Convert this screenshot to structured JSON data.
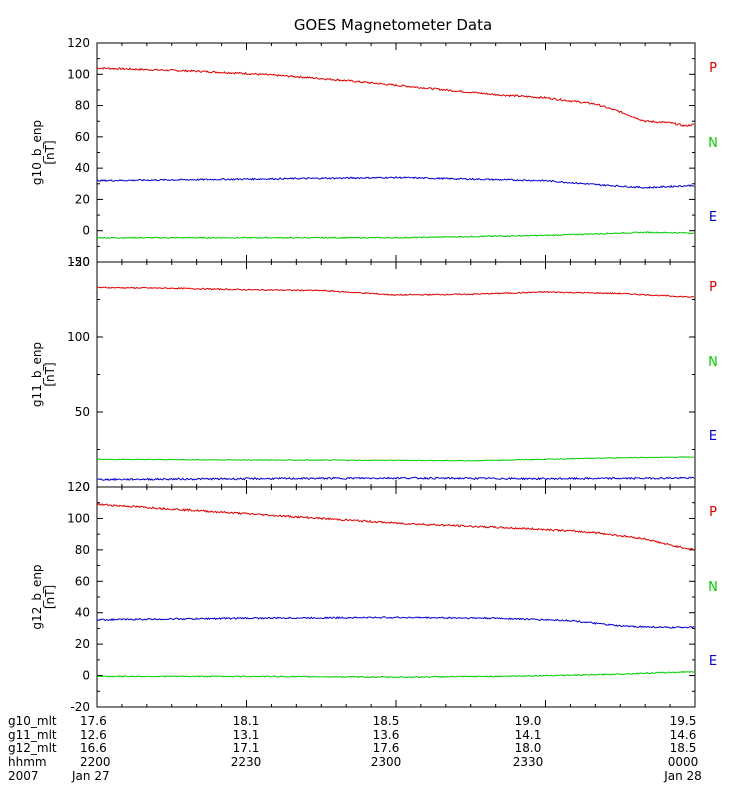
{
  "chart_data": {
    "type": "line",
    "title": "GOES Magnetometer Data",
    "x": {
      "start": "2007-01-27 22:00",
      "end": "2007-01-28 00:00",
      "tick_times": [
        "2200",
        "2230",
        "2300",
        "2330",
        "0000"
      ]
    },
    "colors": {
      "P": "#dd0000",
      "N": "#00cc00",
      "E": "#0000cc"
    },
    "panels": [
      {
        "ylabel": "g10_b_enp",
        "yunits": "[nT]",
        "ylim": [
          -20,
          120
        ],
        "yticks": [
          -20,
          0,
          20,
          40,
          60,
          80,
          100,
          120
        ],
        "series": [
          {
            "name": "P",
            "color": "#dd0000",
            "noise": 0.6,
            "points": [
              [
                "22:00",
                104
              ],
              [
                "22:10",
                103
              ],
              [
                "22:20",
                102
              ],
              [
                "22:30",
                100.5
              ],
              [
                "22:40",
                98.5
              ],
              [
                "22:50",
                96
              ],
              [
                "23:00",
                93
              ],
              [
                "23:10",
                90
              ],
              [
                "23:20",
                87
              ],
              [
                "23:30",
                85
              ],
              [
                "23:40",
                81
              ],
              [
                "23:45",
                76
              ],
              [
                "23:50",
                70
              ],
              [
                "23:55",
                69
              ],
              [
                "23:58",
                67
              ],
              [
                "24:00",
                68
              ]
            ]
          },
          {
            "name": "N",
            "color": "#00cc00",
            "noise": 0.35,
            "points": [
              [
                "22:00",
                -4.5
              ],
              [
                "22:30",
                -4.5
              ],
              [
                "23:00",
                -4.5
              ],
              [
                "23:20",
                -3.5
              ],
              [
                "23:30",
                -3
              ],
              [
                "23:40",
                -2
              ],
              [
                "23:50",
                -1
              ],
              [
                "24:00",
                -1.5
              ]
            ]
          },
          {
            "name": "E",
            "color": "#0000cc",
            "noise": 0.5,
            "points": [
              [
                "22:00",
                32
              ],
              [
                "22:30",
                33
              ],
              [
                "23:00",
                34
              ],
              [
                "23:15",
                33
              ],
              [
                "23:30",
                32
              ],
              [
                "23:40",
                29.5
              ],
              [
                "23:50",
                27.5
              ],
              [
                "24:00",
                29
              ]
            ]
          }
        ]
      },
      {
        "ylabel": "g11_b_enp",
        "yunits": "[nT]",
        "ylim": [
          0,
          150
        ],
        "yticks": [
          0,
          50,
          100,
          150
        ],
        "series": [
          {
            "name": "P",
            "color": "#dd0000",
            "noise": 0.4,
            "points": [
              [
                "22:00",
                133
              ],
              [
                "22:15",
                132.5
              ],
              [
                "22:30",
                131.5
              ],
              [
                "22:45",
                131
              ],
              [
                "23:00",
                128
              ],
              [
                "23:15",
                128.5
              ],
              [
                "23:30",
                130
              ],
              [
                "23:45",
                129
              ],
              [
                "24:00",
                126.5
              ]
            ]
          },
          {
            "name": "N",
            "color": "#00cc00",
            "noise": 0.25,
            "points": [
              [
                "22:00",
                18.5
              ],
              [
                "22:30",
                18
              ],
              [
                "23:00",
                17.8
              ],
              [
                "23:15",
                17.5
              ],
              [
                "23:30",
                18.5
              ],
              [
                "23:45",
                19.5
              ],
              [
                "24:00",
                20
              ]
            ]
          },
          {
            "name": "E",
            "color": "#0000cc",
            "noise": 0.6,
            "points": [
              [
                "22:00",
                5
              ],
              [
                "22:30",
                5.5
              ],
              [
                "23:00",
                6
              ],
              [
                "23:30",
                5.5
              ],
              [
                "24:00",
                6
              ]
            ]
          }
        ]
      },
      {
        "ylabel": "g12_b_enp",
        "yunits": "[nT]",
        "ylim": [
          -20,
          120
        ],
        "yticks": [
          -20,
          0,
          20,
          40,
          60,
          80,
          100,
          120
        ],
        "series": [
          {
            "name": "P",
            "color": "#dd0000",
            "noise": 0.6,
            "points": [
              [
                "22:00",
                109
              ],
              [
                "22:15",
                106
              ],
              [
                "22:30",
                103
              ],
              [
                "22:45",
                100
              ],
              [
                "23:00",
                97
              ],
              [
                "23:15",
                95
              ],
              [
                "23:30",
                93
              ],
              [
                "23:40",
                91
              ],
              [
                "23:50",
                87
              ],
              [
                "23:55",
                83
              ],
              [
                "24:00",
                80
              ]
            ]
          },
          {
            "name": "N",
            "color": "#00cc00",
            "noise": 0.35,
            "points": [
              [
                "22:00",
                -0.5
              ],
              [
                "22:30",
                -0.5
              ],
              [
                "23:00",
                -1
              ],
              [
                "23:20",
                -0.5
              ],
              [
                "23:40",
                0.5
              ],
              [
                "23:50",
                1.5
              ],
              [
                "24:00",
                2.5
              ]
            ]
          },
          {
            "name": "E",
            "color": "#0000cc",
            "noise": 0.5,
            "points": [
              [
                "22:00",
                35.5
              ],
              [
                "22:30",
                36.5
              ],
              [
                "23:00",
                37
              ],
              [
                "23:20",
                36.5
              ],
              [
                "23:35",
                35
              ],
              [
                "23:45",
                31.5
              ],
              [
                "23:55",
                30.5
              ],
              [
                "24:00",
                31
              ]
            ]
          }
        ]
      }
    ],
    "footer": {
      "rows": [
        {
          "label": "g10_mlt",
          "values": [
            "17.6",
            "18.1",
            "18.5",
            "19.0",
            "19.5"
          ]
        },
        {
          "label": "g11_mlt",
          "values": [
            "12.6",
            "13.1",
            "13.6",
            "14.1",
            "14.6"
          ]
        },
        {
          "label": "g12_mlt",
          "values": [
            "16.6",
            "17.1",
            "17.6",
            "18.0",
            "18.5"
          ]
        },
        {
          "label": "hhmm",
          "values": [
            "2200",
            "2230",
            "2300",
            "2330",
            "0000"
          ]
        }
      ],
      "date_row": {
        "label": "2007",
        "values": [
          "Jan 27",
          "",
          "",
          "",
          "Jan 28"
        ]
      }
    }
  }
}
